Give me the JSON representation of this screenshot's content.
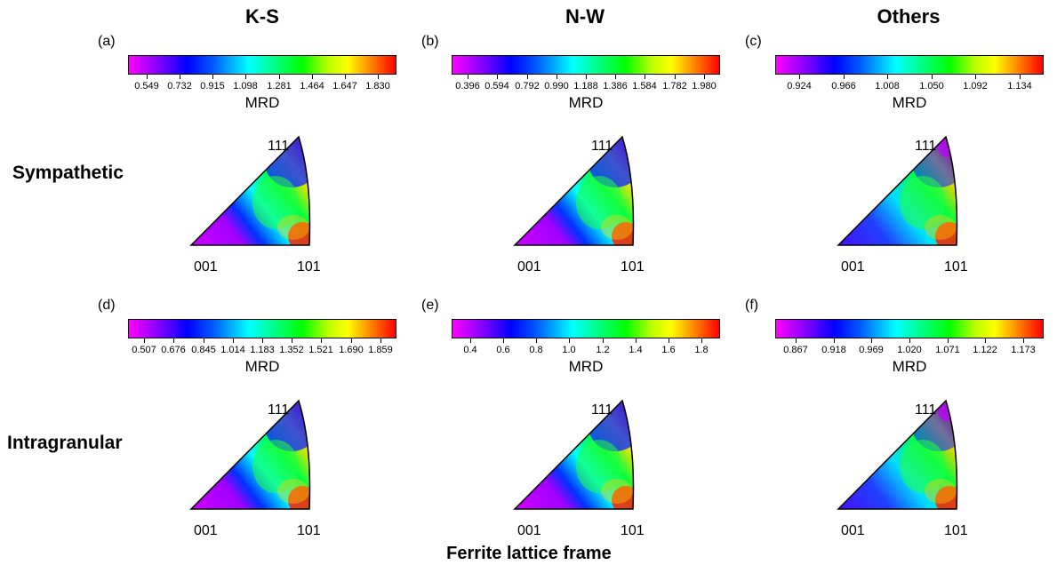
{
  "columns": [
    "K-S",
    "N-W",
    "Others"
  ],
  "rows": [
    "Sympathetic",
    "Intragranular"
  ],
  "footer": "Ferrite lattice frame",
  "colorbar_label": "MRD",
  "poles": {
    "top": "111",
    "left": "001",
    "right": "101"
  },
  "panels": [
    {
      "label": "(a)",
      "ticks": [
        "0.549",
        "0.732",
        "0.915",
        "1.098",
        "1.281",
        "1.464",
        "1.647",
        "1.830"
      ],
      "scheme": "ks"
    },
    {
      "label": "(b)",
      "ticks": [
        "0.396",
        "0.594",
        "0.792",
        "0.990",
        "1.188",
        "1.386",
        "1.584",
        "1.782",
        "1.980"
      ],
      "scheme": "nw"
    },
    {
      "label": "(c)",
      "ticks": [
        "0.924",
        "0.966",
        "1.008",
        "1.050",
        "1.092",
        "1.134"
      ],
      "scheme": "oth"
    },
    {
      "label": "(d)",
      "ticks": [
        "0.507",
        "0.676",
        "0.845",
        "1.014",
        "1.183",
        "1.352",
        "1.521",
        "1.690",
        "1.859"
      ],
      "scheme": "ks"
    },
    {
      "label": "(e)",
      "ticks": [
        "0.4",
        "0.6",
        "0.8",
        "1.0",
        "1.2",
        "1.4",
        "1.6",
        "1.8"
      ],
      "scheme": "nw"
    },
    {
      "label": "(f)",
      "ticks": [
        "0.867",
        "0.918",
        "0.969",
        "1.020",
        "1.071",
        "1.122",
        "1.173"
      ],
      "scheme": "oth"
    }
  ]
}
